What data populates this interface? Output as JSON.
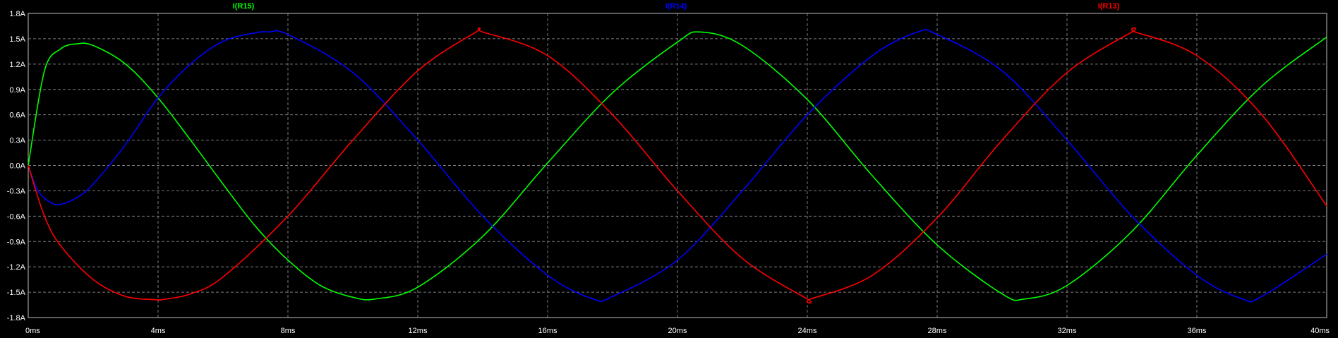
{
  "chart_data": {
    "type": "line",
    "title": "",
    "xlabel": "",
    "ylabel": "",
    "xlim": [
      0,
      40
    ],
    "ylim": [
      -1.8,
      1.8
    ],
    "grid": true,
    "legend": "top, above each trace label",
    "background": "#000000",
    "x_tick_labels": [
      "0ms",
      "4ms",
      "8ms",
      "12ms",
      "16ms",
      "20ms",
      "24ms",
      "28ms",
      "32ms",
      "36ms",
      "40ms"
    ],
    "y_tick_labels": [
      "1.8A",
      "1.5A",
      "1.2A",
      "0.9A",
      "0.6A",
      "0.3A",
      "0.0A",
      "-0.3A",
      "-0.6A",
      "-0.9A",
      "-1.2A",
      "-1.5A",
      "-1.8A"
    ],
    "series": [
      {
        "name": "I(R15)",
        "color": "#00ff00",
        "x": [
          0,
          0.5,
          1,
          1.5,
          2,
          3,
          4,
          5,
          6,
          7,
          8,
          9,
          10,
          10.7,
          12,
          14,
          16,
          18,
          20,
          20.7,
          22,
          24,
          26,
          28,
          30,
          30.7,
          32,
          34,
          36,
          38,
          40
        ],
        "y": [
          0,
          1.12,
          1.38,
          1.44,
          1.42,
          1.2,
          0.8,
          0.3,
          -0.22,
          -0.72,
          -1.12,
          -1.42,
          -1.56,
          -1.58,
          -1.44,
          -0.84,
          0.03,
          0.86,
          1.46,
          1.58,
          1.42,
          0.78,
          -0.12,
          -0.94,
          -1.52,
          -1.58,
          -1.42,
          -0.78,
          0.12,
          0.94,
          1.52
        ]
      },
      {
        "name": "I(R14)",
        "color": "#0000ff",
        "x": [
          0,
          0.3,
          0.7,
          1,
          1.5,
          2,
          3,
          4,
          5,
          6,
          7,
          7.4,
          8,
          10,
          12,
          14,
          16,
          17.4,
          18,
          20,
          22,
          24,
          26,
          27.4,
          28,
          30,
          32,
          34,
          36,
          37.4,
          38,
          40
        ],
        "y": [
          0,
          -0.3,
          -0.44,
          -0.46,
          -0.38,
          -0.22,
          0.25,
          0.8,
          1.2,
          1.47,
          1.57,
          1.58,
          1.55,
          1.1,
          0.3,
          -0.6,
          -1.3,
          -1.58,
          -1.55,
          -1.12,
          -0.3,
          0.6,
          1.3,
          1.58,
          1.55,
          1.12,
          0.3,
          -0.6,
          -1.3,
          -1.58,
          -1.55,
          -1.05
        ]
      },
      {
        "name": "I(R13)",
        "color": "#ff0000",
        "x": [
          0,
          0.5,
          1,
          2,
          3,
          4,
          4.1,
          5,
          6,
          8,
          10,
          12,
          13.8,
          14,
          16,
          18,
          20,
          22,
          24,
          24.1,
          26,
          28,
          30,
          32,
          34,
          34.1,
          36,
          38,
          40
        ],
        "y": [
          0,
          -0.6,
          -0.95,
          -1.35,
          -1.55,
          -1.59,
          -1.59,
          -1.52,
          -1.32,
          -0.6,
          0.3,
          1.12,
          1.58,
          1.58,
          1.3,
          0.6,
          -0.3,
          -1.1,
          -1.58,
          -1.58,
          -1.3,
          -0.62,
          0.3,
          1.1,
          1.58,
          1.58,
          1.3,
          0.6,
          -0.48
        ]
      }
    ]
  }
}
